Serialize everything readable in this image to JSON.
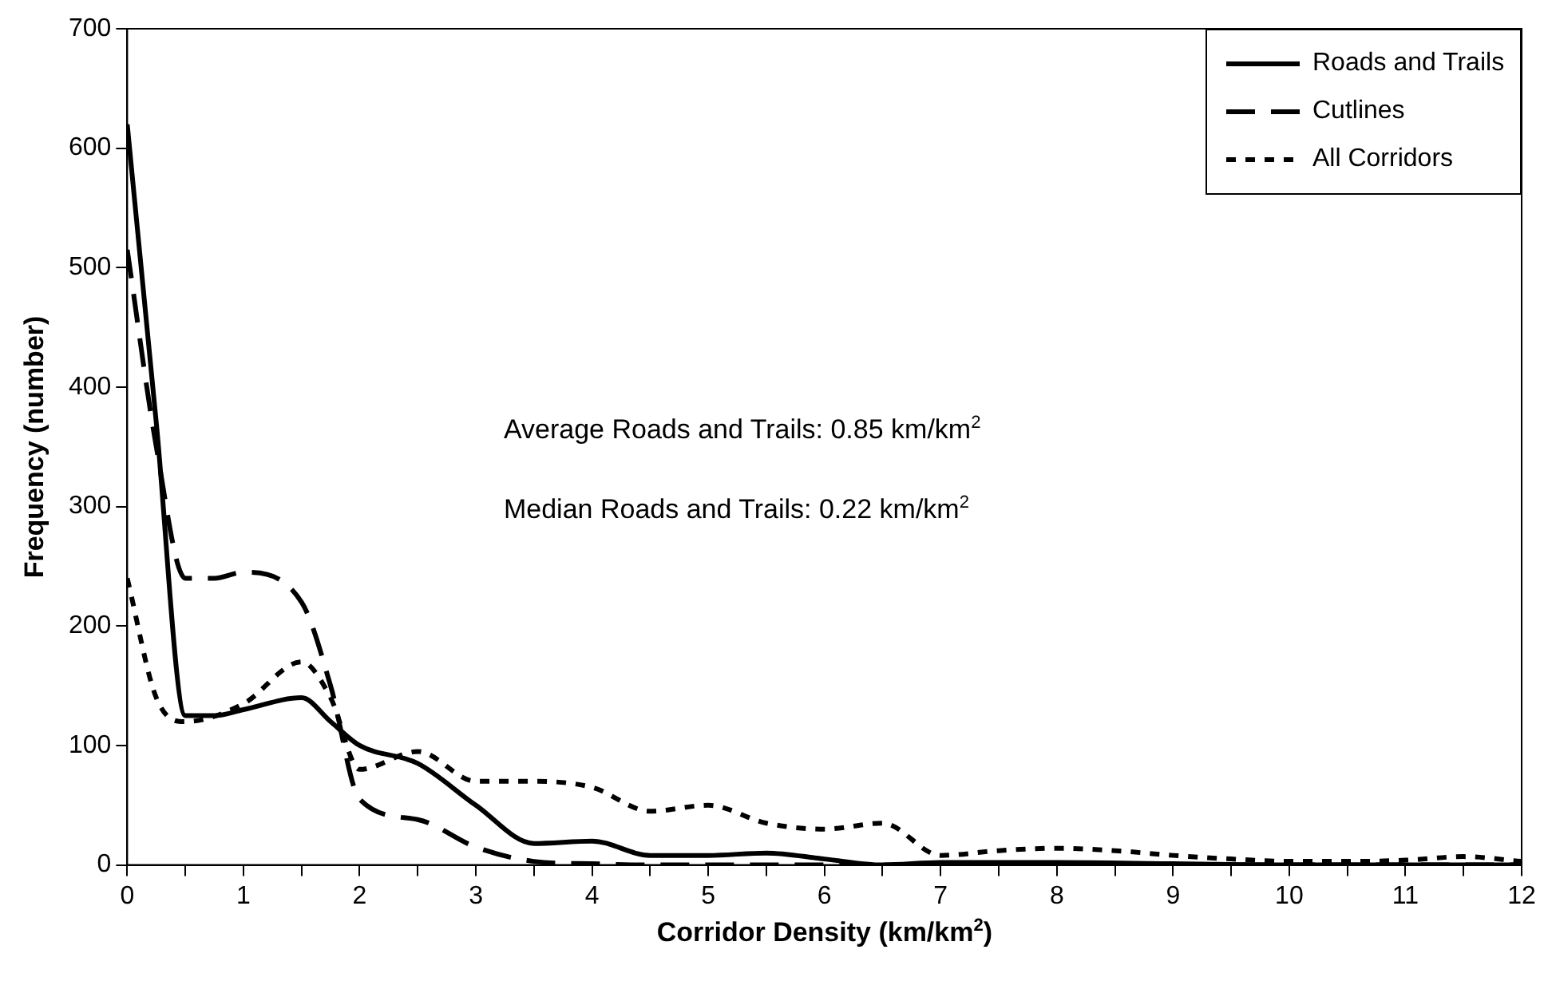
{
  "chart_data": {
    "type": "line",
    "xlabel": "Corridor Density (km/km$^{2}$)",
    "ylabel": "Frequency (number)",
    "annotations": [
      "Average Roads and Trails: 0.85 km/km$^{2}$",
      "Median Roads and Trails:  0.22 km/km$^{2}$"
    ],
    "xlim": [
      0,
      12
    ],
    "ylim": [
      0,
      700
    ],
    "xticks": [
      0,
      {
        "value": 0.5,
        "label": null
      },
      1,
      {
        "value": 1.5,
        "label": null
      },
      2,
      {
        "value": 2.5,
        "label": null
      },
      3,
      {
        "value": 3.5,
        "label": null
      },
      4,
      {
        "value": 4.5,
        "label": null
      },
      5,
      {
        "value": 5.5,
        "label": null
      },
      6,
      {
        "value": 6.5,
        "label": null
      },
      7,
      {
        "value": 7.5,
        "label": null
      },
      8,
      {
        "value": 8.5,
        "label": null
      },
      9,
      {
        "value": 9.5,
        "label": null
      },
      10,
      {
        "value": 10.5,
        "label": null
      },
      11,
      {
        "value": 11.5,
        "label": null
      },
      12
    ],
    "yticks": [
      0,
      100,
      200,
      300,
      400,
      500,
      600,
      700
    ],
    "grid": false,
    "legend": "top right",
    "marker": "none",
    "series": [
      {
        "name": "Roads and Trails",
        "color": "#000000",
        "line_style": "solid",
        "x": [
          0,
          0.25,
          0.5,
          0.75,
          1,
          1.5,
          1.75,
          2,
          2.5,
          3,
          3.5,
          4,
          4.5,
          5,
          5.5,
          6,
          6.5,
          7,
          8,
          9,
          10,
          11,
          12
        ],
        "values": [
          620,
          370,
          125,
          125,
          130,
          140,
          120,
          100,
          85,
          50,
          18,
          20,
          8,
          8,
          10,
          5,
          0,
          2,
          2,
          1,
          0,
          0,
          0
        ]
      },
      {
        "name": "Cutlines",
        "color": "#000000",
        "line_style": "dashed",
        "x": [
          0,
          0.25,
          0.5,
          0.75,
          1,
          1.5,
          1.75,
          2,
          2.5,
          3,
          3.5,
          4,
          4.5,
          5,
          6,
          7,
          8,
          9,
          10,
          11,
          12
        ],
        "values": [
          515,
          350,
          240,
          240,
          245,
          220,
          150,
          55,
          38,
          15,
          3,
          1,
          0,
          0,
          0,
          0,
          0,
          0,
          0,
          0,
          0
        ]
      },
      {
        "name": "All Corridors",
        "color": "#000000",
        "line_style": "dotted",
        "x": [
          0,
          0.25,
          0.5,
          1,
          1.5,
          1.75,
          2,
          2.5,
          3,
          3.5,
          4,
          4.5,
          5,
          5.5,
          6,
          6.5,
          7,
          7.5,
          8,
          8.5,
          9,
          9.5,
          10,
          10.5,
          11,
          11.5,
          12
        ],
        "values": [
          240,
          140,
          120,
          135,
          170,
          140,
          80,
          95,
          70,
          70,
          65,
          45,
          50,
          35,
          30,
          35,
          8,
          12,
          14,
          12,
          8,
          5,
          3,
          3,
          4,
          7,
          3
        ]
      }
    ]
  }
}
